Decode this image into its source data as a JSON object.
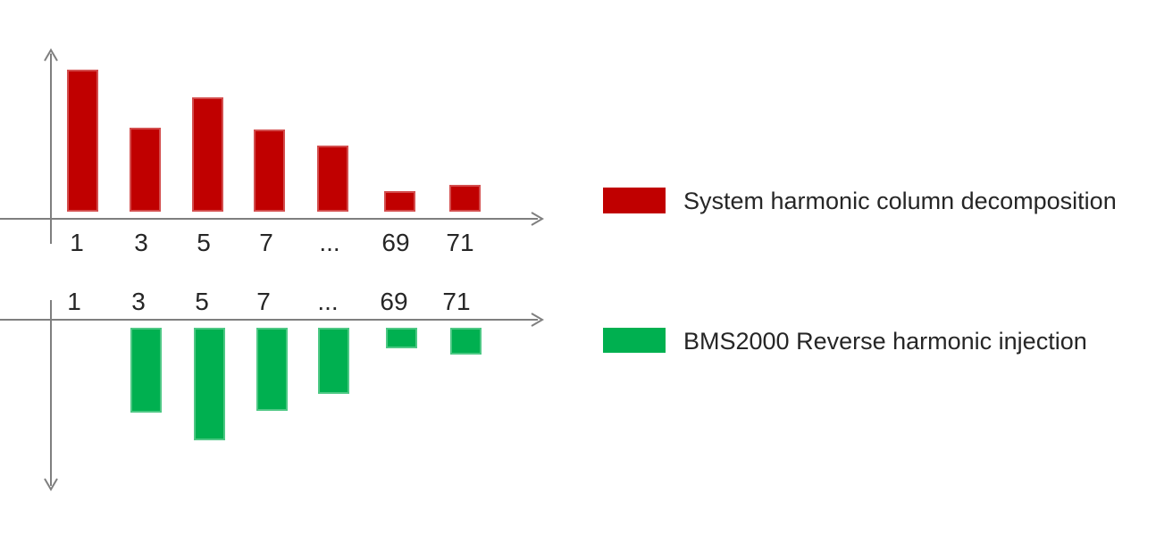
{
  "colors": {
    "red_bar": "#c00000",
    "green_bar": "#00b050",
    "axis": "#7f7f7f",
    "text": "#262626",
    "background": "#ffffff"
  },
  "legend": {
    "items": [
      {
        "swatch_color": "#c00000",
        "label": "System harmonic column decomposition"
      },
      {
        "swatch_color": "#00b050",
        "label": "BMS2000 Reverse harmonic injection"
      }
    ],
    "position": "right"
  },
  "chart_data": [
    {
      "type": "bar",
      "name": "System harmonic column decomposition",
      "categories": [
        "1",
        "3",
        "5",
        "7",
        "...",
        "69",
        "71"
      ],
      "values": [
        159,
        94,
        128,
        92,
        74,
        23,
        30
      ],
      "value_unit": "relative magnitude in px (no numeric y-axis labels shown)",
      "direction": "up",
      "bar_color": "#c00000",
      "axis_color": "#7f7f7f",
      "xlabel": "",
      "ylabel": "",
      "title": "",
      "grid": false,
      "tick_labels_below_axis": true
    },
    {
      "type": "bar",
      "name": "BMS2000 Reverse harmonic injection",
      "categories": [
        "1",
        "3",
        "5",
        "7",
        "...",
        "69",
        "71"
      ],
      "values": [
        0,
        95,
        126,
        93,
        74,
        23,
        30
      ],
      "value_unit": "relative magnitude in px (no numeric y-axis labels shown; bars drawn downward; no bar at harmonic 1)",
      "direction": "down",
      "bar_color": "#00b050",
      "axis_color": "#7f7f7f",
      "xlabel": "",
      "ylabel": "",
      "title": "",
      "grid": false,
      "tick_labels_below_axis": false
    }
  ]
}
